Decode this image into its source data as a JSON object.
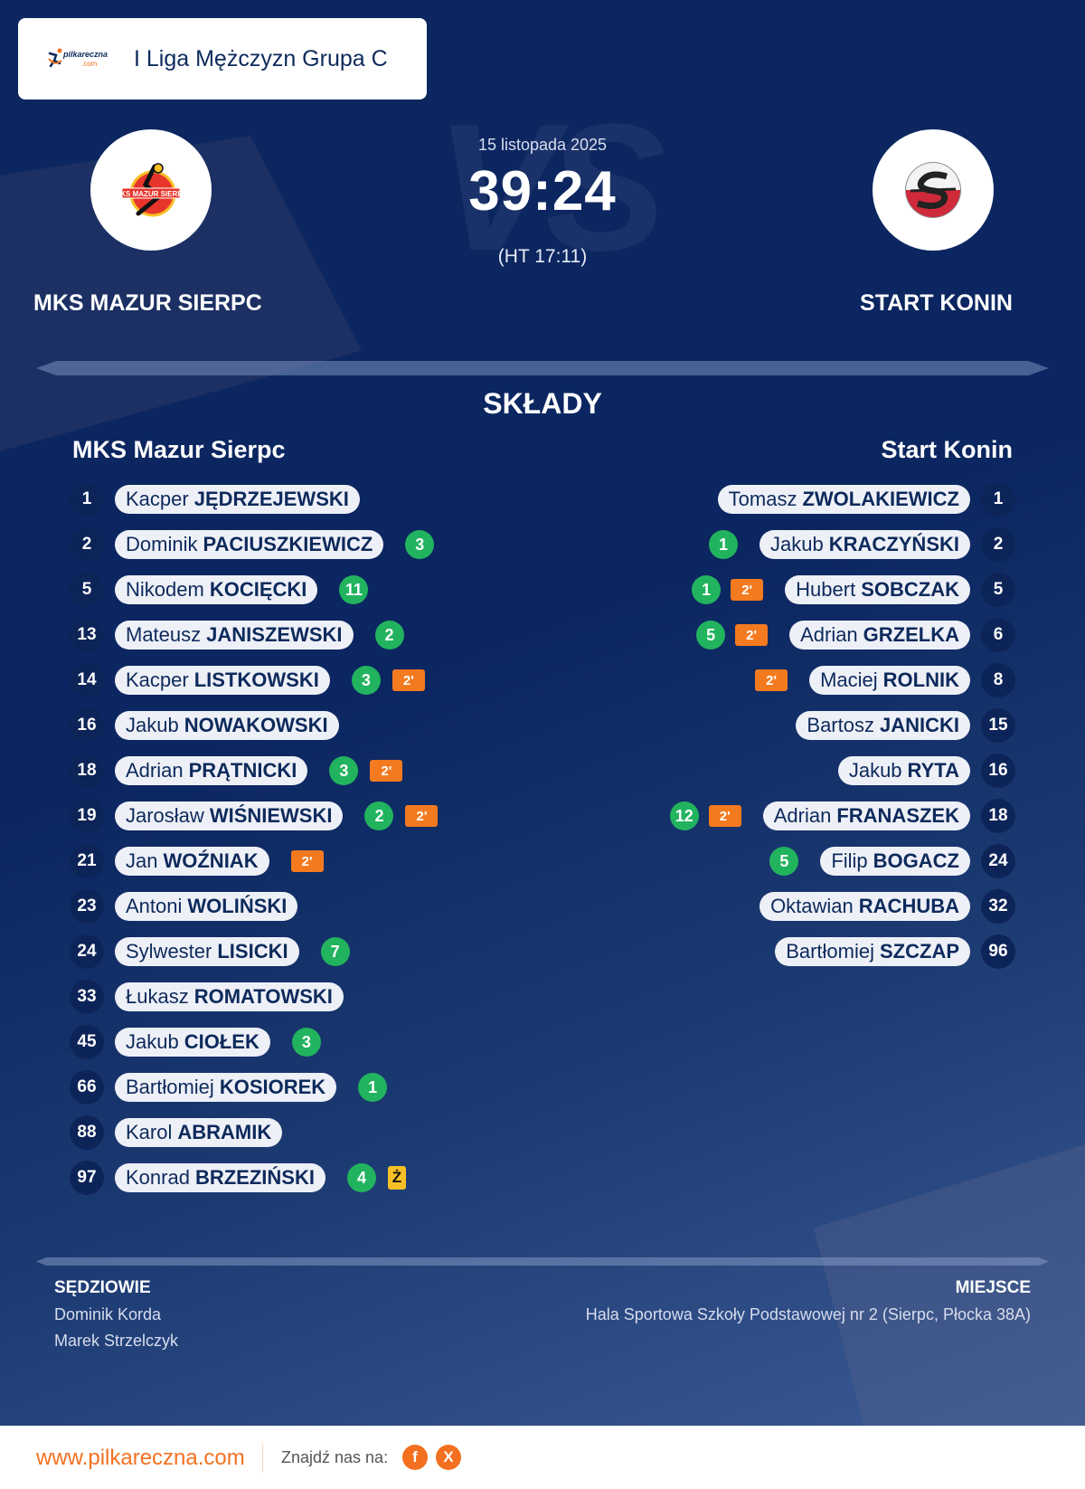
{
  "header": {
    "league_logo_text": "pilkareczna",
    "league_logo_sub": ".com",
    "league_title": "I Liga Mężczyzn Grupa C"
  },
  "match": {
    "date": "15 listopada 2025",
    "score": "39:24",
    "halftime": "(HT 17:11)",
    "watermark": "VS",
    "home_team": "MKS MAZUR SIERPC",
    "away_team": "START KONIN",
    "home_crest_icon": "mks-mazur-sierpc-crest",
    "away_crest_icon": "start-konin-crest"
  },
  "lineups": {
    "title": "SKŁADY",
    "home_heading": "MKS Mazur Sierpc",
    "away_heading": "Start Konin",
    "home": [
      {
        "number": "1",
        "first": "Kacper",
        "last": "JĘDRZEJEWSKI",
        "goals": "",
        "suspension": "",
        "yellow": ""
      },
      {
        "number": "2",
        "first": "Dominik",
        "last": "PACIUSZKIEWICZ",
        "goals": "3",
        "suspension": "",
        "yellow": ""
      },
      {
        "number": "5",
        "first": "Nikodem",
        "last": "KOCIĘCKI",
        "goals": "11",
        "suspension": "",
        "yellow": ""
      },
      {
        "number": "13",
        "first": "Mateusz",
        "last": "JANISZEWSKI",
        "goals": "2",
        "suspension": "",
        "yellow": ""
      },
      {
        "number": "14",
        "first": "Kacper",
        "last": "LISTKOWSKI",
        "goals": "3",
        "suspension": "2'",
        "yellow": ""
      },
      {
        "number": "16",
        "first": "Jakub",
        "last": "NOWAKOWSKI",
        "goals": "",
        "suspension": "",
        "yellow": ""
      },
      {
        "number": "18",
        "first": "Adrian",
        "last": "PRĄTNICKI",
        "goals": "3",
        "suspension": "2'",
        "yellow": ""
      },
      {
        "number": "19",
        "first": "Jarosław",
        "last": "WIŚNIEWSKI",
        "goals": "2",
        "suspension": "2'",
        "yellow": ""
      },
      {
        "number": "21",
        "first": "Jan",
        "last": "WOŹNIAK",
        "goals": "",
        "suspension": "2'",
        "yellow": ""
      },
      {
        "number": "23",
        "first": "Antoni",
        "last": "WOLIŃSKI",
        "goals": "",
        "suspension": "",
        "yellow": ""
      },
      {
        "number": "24",
        "first": "Sylwester",
        "last": "LISICKI",
        "goals": "7",
        "suspension": "",
        "yellow": ""
      },
      {
        "number": "33",
        "first": "Łukasz",
        "last": "ROMATOWSKI",
        "goals": "",
        "suspension": "",
        "yellow": ""
      },
      {
        "number": "45",
        "first": "Jakub",
        "last": "CIOŁEK",
        "goals": "3",
        "suspension": "",
        "yellow": ""
      },
      {
        "number": "66",
        "first": "Bartłomiej",
        "last": "KOSIOREK",
        "goals": "1",
        "suspension": "",
        "yellow": ""
      },
      {
        "number": "88",
        "first": "Karol",
        "last": "ABRAMIK",
        "goals": "",
        "suspension": "",
        "yellow": ""
      },
      {
        "number": "97",
        "first": "Konrad",
        "last": "BRZEZIŃSKI",
        "goals": "4",
        "suspension": "",
        "yellow": "Ż"
      }
    ],
    "away": [
      {
        "number": "1",
        "first": "Tomasz",
        "last": "ZWOLAKIEWICZ",
        "goals": "",
        "suspension": "",
        "yellow": ""
      },
      {
        "number": "2",
        "first": "Jakub",
        "last": "KRACZYŃSKI",
        "goals": "1",
        "suspension": "",
        "yellow": ""
      },
      {
        "number": "5",
        "first": "Hubert",
        "last": "SOBCZAK",
        "goals": "1",
        "suspension": "2'",
        "yellow": ""
      },
      {
        "number": "6",
        "first": "Adrian",
        "last": "GRZELKA",
        "goals": "5",
        "suspension": "2'",
        "yellow": ""
      },
      {
        "number": "8",
        "first": "Maciej",
        "last": "ROLNIK",
        "goals": "",
        "suspension": "2'",
        "yellow": ""
      },
      {
        "number": "15",
        "first": "Bartosz",
        "last": "JANICKI",
        "goals": "",
        "suspension": "",
        "yellow": ""
      },
      {
        "number": "16",
        "first": "Jakub",
        "last": "RYTA",
        "goals": "",
        "suspension": "",
        "yellow": ""
      },
      {
        "number": "18",
        "first": "Adrian",
        "last": "FRANASZEK",
        "goals": "12",
        "suspension": "2'",
        "yellow": ""
      },
      {
        "number": "24",
        "first": "Filip",
        "last": "BOGACZ",
        "goals": "5",
        "suspension": "",
        "yellow": ""
      },
      {
        "number": "32",
        "first": "Oktawian",
        "last": "RACHUBA",
        "goals": "",
        "suspension": "",
        "yellow": ""
      },
      {
        "number": "96",
        "first": "Bartłomiej",
        "last": "SZCZAP",
        "goals": "",
        "suspension": "",
        "yellow": ""
      }
    ]
  },
  "officials": {
    "heading": "SĘDZIOWIE",
    "names": [
      "Dominik Korda",
      "Marek Strzelczyk"
    ]
  },
  "venue": {
    "heading": "MIEJSCE",
    "name": "Hala Sportowa Szkoły Podstawowej nr 2 (Sierpc, Płocka 38A)"
  },
  "footer": {
    "url": "www.pilkareczna.com",
    "find_us": "Znajdź nas na:",
    "facebook_label": "f",
    "x_label": "X"
  },
  "colors": {
    "background": "#0c2660",
    "goal_badge": "#22b35e",
    "suspension_badge": "#f47a1f",
    "yellow_card": "#f6c026",
    "brand_orange": "#f37021",
    "pill_text": "#0d2a5c"
  }
}
